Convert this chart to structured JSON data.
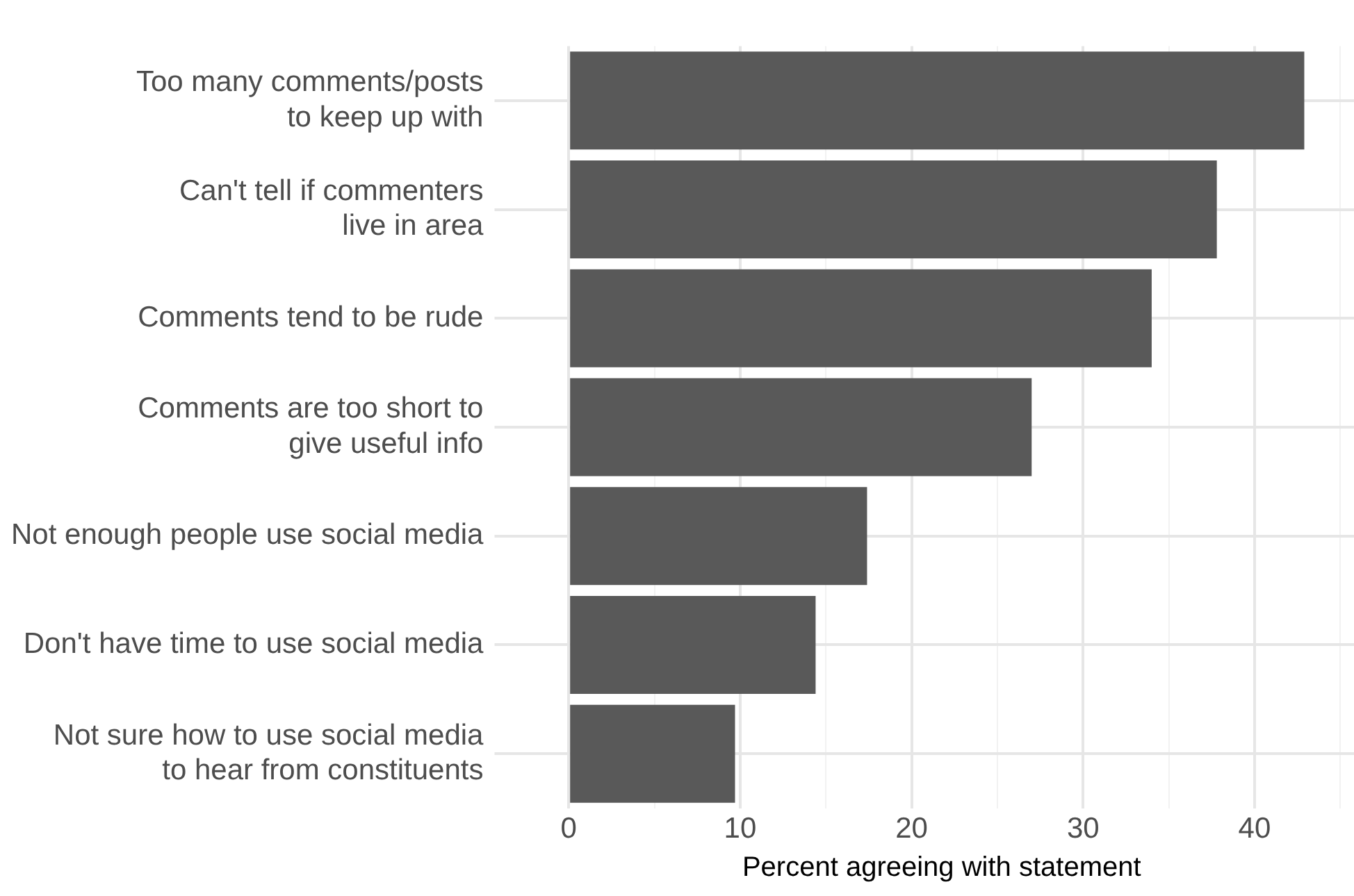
{
  "chart_data": {
    "type": "bar",
    "orientation": "horizontal",
    "xlabel": "Percent agreeing with statement",
    "categories": [
      "Too many comments/posts\nto keep up with",
      "Can't tell if commenters\nlive in area",
      "Comments tend to be rude",
      "Comments are too short to\ngive useful info",
      "Not enough people use social media",
      "Don't have time to use social media",
      "Not sure how to use social media\nto hear from constituents"
    ],
    "values": [
      42.9,
      37.8,
      34.0,
      27.0,
      17.4,
      14.4,
      9.7
    ],
    "color": "#595959",
    "xlim": [
      -2.3,
      45.8
    ],
    "xticks": [
      0,
      {
        "value": 5,
        "label": null
      },
      10,
      {
        "value": 15,
        "label": null
      },
      20,
      {
        "value": 25,
        "label": null
      },
      30,
      {
        "value": 35,
        "label": null
      },
      40,
      {
        "value": 45,
        "label": null
      }
    ],
    "grid": true,
    "legend": false
  }
}
